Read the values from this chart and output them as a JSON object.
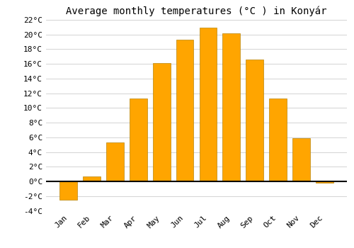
{
  "title": "Average monthly temperatures (°C ) in Konyár",
  "months": [
    "Jan",
    "Feb",
    "Mar",
    "Apr",
    "May",
    "Jun",
    "Jul",
    "Aug",
    "Sep",
    "Oct",
    "Nov",
    "Dec"
  ],
  "values": [
    -2.5,
    0.7,
    5.3,
    11.3,
    16.1,
    19.3,
    20.9,
    20.2,
    16.6,
    11.3,
    5.9,
    -0.2
  ],
  "bar_color": "#FFA500",
  "bar_edge_color": "#B8860B",
  "background_color": "#ffffff",
  "grid_color": "#cccccc",
  "ylim": [
    -4,
    22
  ],
  "yticks": [
    -4,
    -2,
    0,
    2,
    4,
    6,
    8,
    10,
    12,
    14,
    16,
    18,
    20,
    22
  ],
  "title_fontsize": 10,
  "tick_fontsize": 8,
  "zero_line_color": "#000000",
  "font_family": "monospace"
}
